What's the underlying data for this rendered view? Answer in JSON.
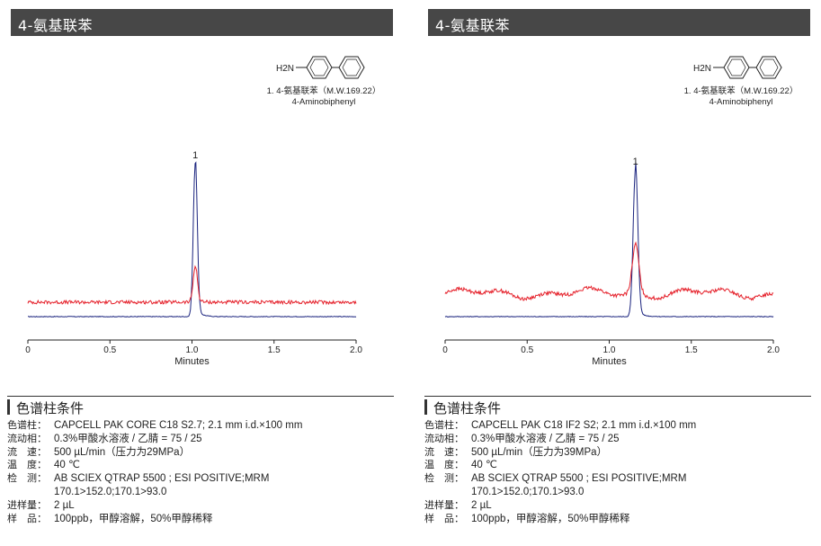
{
  "panels": [
    {
      "title": "4-氨基联苯",
      "compound": {
        "amine_label": "H2N",
        "name_line1": "1. 4-氨基联苯（M.W.169.22）",
        "name_line2": "4-Aminobiphenyl"
      },
      "conditions_header": "色谱柱条件",
      "conditions": [
        {
          "label": "色谱柱：",
          "value": "CAPCELL PAK CORE C18 S2.7; 2.1 mm i.d.×100 mm"
        },
        {
          "label": "流动相：",
          "value": "0.3%甲酸水溶液 / 乙腈 = 75 / 25"
        },
        {
          "label": "流　速：",
          "value": "500 µL/min（压力为29MPa）"
        },
        {
          "label": "温　度：",
          "value": "40 ℃"
        },
        {
          "label": "检　测：",
          "value": "AB SCIEX QTRAP 5500 ; ESI POSITIVE;MRM"
        },
        {
          "label": "",
          "value": "170.1>152.0;170.1>93.0"
        },
        {
          "label": "进样量：",
          "value": "2 µL"
        },
        {
          "label": "样　品：",
          "value": "100ppb，甲醇溶解，50%甲醇稀释"
        }
      ]
    },
    {
      "title": "4-氨基联苯",
      "compound": {
        "amine_label": "H2N",
        "name_line1": "1. 4-氨基联苯（M.W.169.22）",
        "name_line2": "4-Aminobiphenyl"
      },
      "conditions_header": "色谱柱条件",
      "conditions": [
        {
          "label": "色谱柱：",
          "value": "CAPCELL PAK C18 IF2 S2; 2.1 mm i.d.×100 mm"
        },
        {
          "label": "流动相：",
          "value": "0.3%甲酸水溶液 / 乙腈 = 75 / 25"
        },
        {
          "label": "流　速：",
          "value": "500 µL/min（压力为39MPa）"
        },
        {
          "label": "温　度：",
          "value": "40 ℃"
        },
        {
          "label": "检　测：",
          "value": "AB SCIEX QTRAP 5500 ; ESI POSITIVE;MRM"
        },
        {
          "label": "",
          "value": "170.1>152.0;170.1>93.0"
        },
        {
          "label": "进样量：",
          "value": "2 µL"
        },
        {
          "label": "样　品：",
          "value": "100ppb，甲醇溶解，50%甲醇稀释"
        }
      ]
    }
  ],
  "chart_data": [
    {
      "type": "line",
      "xlabel": "Minutes",
      "ylabel": "",
      "xlim": [
        0,
        2.0
      ],
      "ylim": [
        0,
        1.0
      ],
      "x_ticks": [
        "0",
        "0.5",
        "1.0",
        "1.5",
        "2.0"
      ],
      "peak_labels": [
        {
          "x": 1.02,
          "text": "1"
        }
      ],
      "series": [
        {
          "color": "#1a237e",
          "baseline": 0.045,
          "peak_x": 1.02,
          "peak_height": 0.96,
          "peak_width": 0.012
        },
        {
          "color": "#e5202a",
          "baseline": 0.135,
          "peak_x": 1.02,
          "peak_height": 0.22,
          "peak_width": 0.013
        }
      ]
    },
    {
      "type": "line",
      "xlabel": "Minutes",
      "ylabel": "",
      "xlim": [
        0,
        2.0
      ],
      "ylim": [
        0,
        1.0
      ],
      "x_ticks": [
        "0",
        "0.5",
        "1.0",
        "1.5",
        "2.0"
      ],
      "peak_labels": [
        {
          "x": 1.16,
          "text": "1"
        }
      ],
      "series": [
        {
          "color": "#1a237e",
          "baseline": 0.045,
          "peak_x": 1.16,
          "peak_height": 0.92,
          "peak_width": 0.014
        },
        {
          "color": "#e5202a",
          "baseline": 0.19,
          "peak_x": 1.16,
          "peak_height": 0.3,
          "peak_width": 0.02
        }
      ]
    }
  ]
}
